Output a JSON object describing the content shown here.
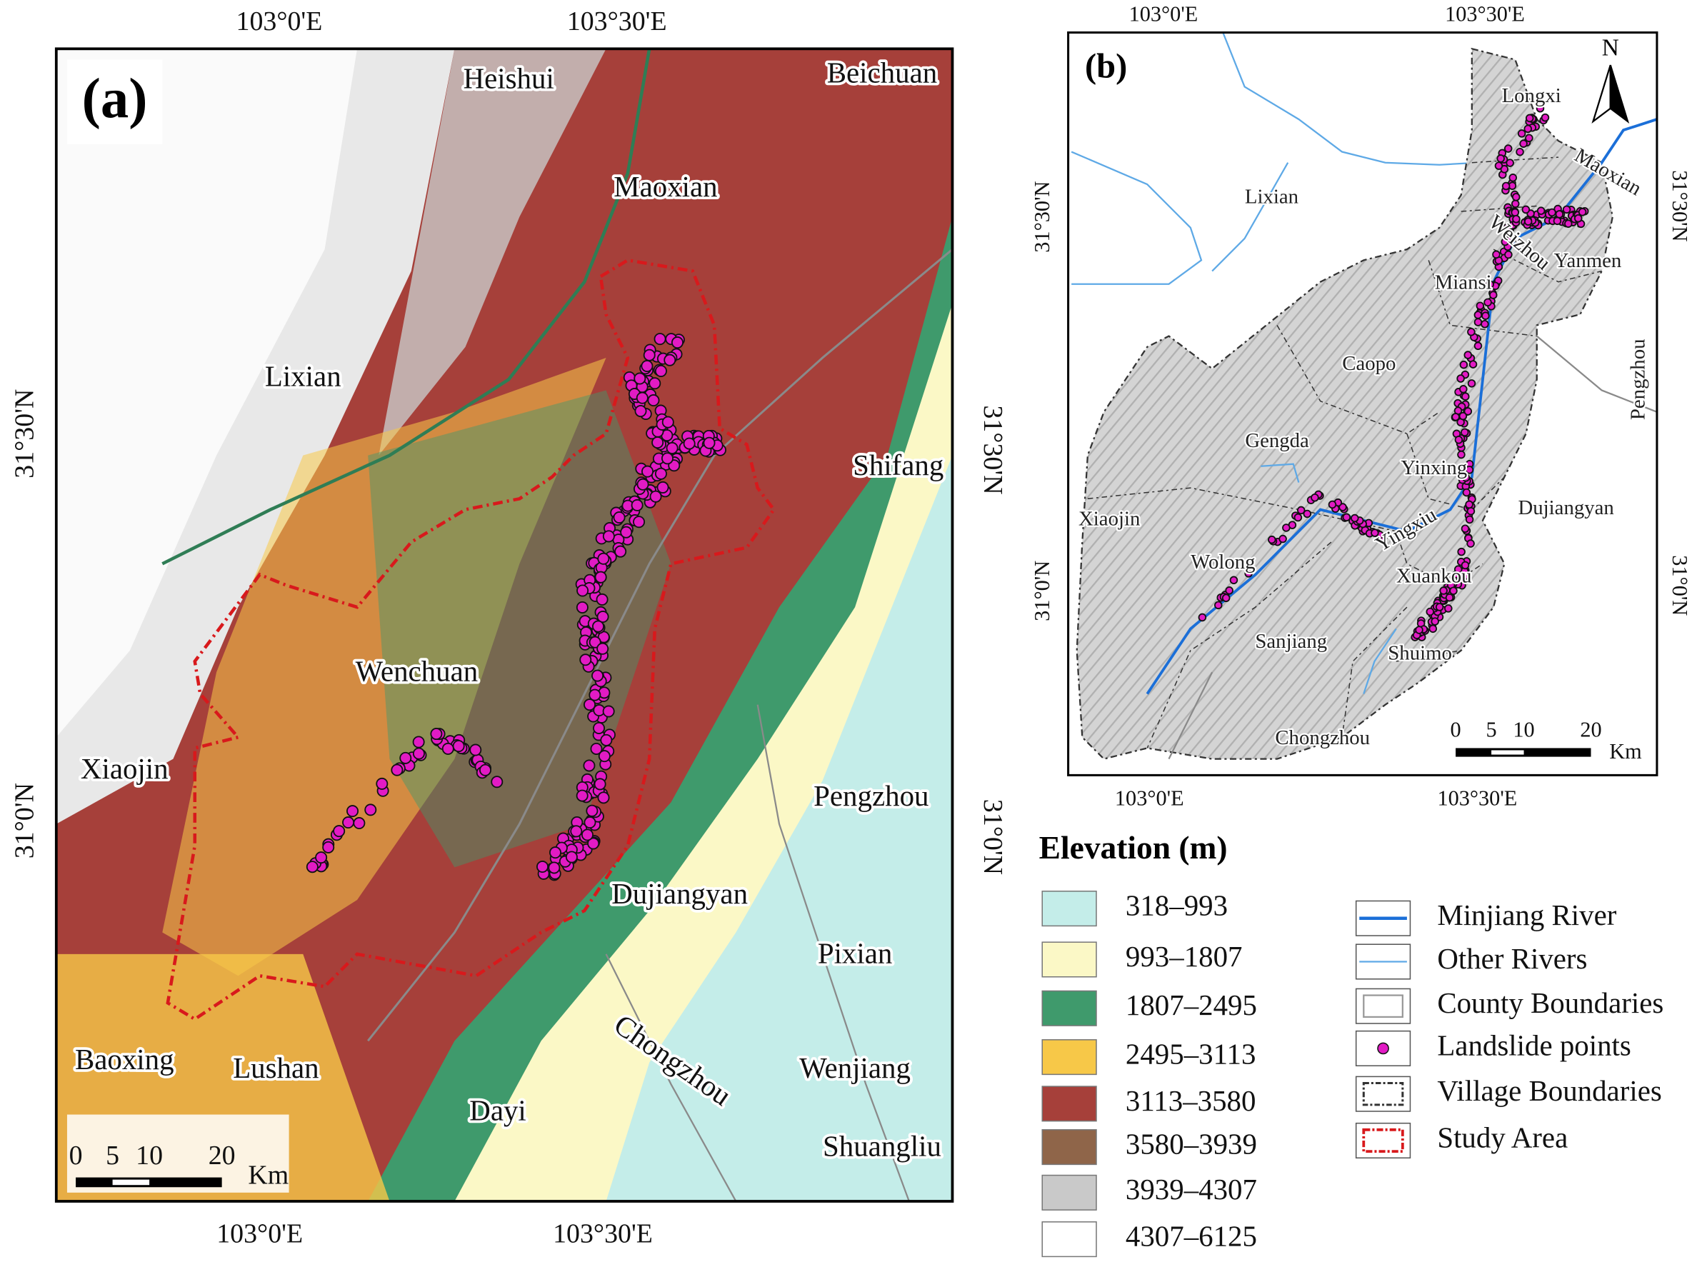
{
  "panel_a": {
    "label": "(a)",
    "top_ticks": [
      "103°0'E",
      "103°30'E"
    ],
    "bottom_ticks": [
      "103°0'E",
      "103°30'E"
    ],
    "left_ticks": [
      "31°30'N",
      "31°0'N"
    ],
    "right_ticks": [
      "31°30'N",
      "31°0'N"
    ],
    "places": [
      "Heishui",
      "Beichuan",
      "Maoxian",
      "Lixian",
      "Shifang",
      "Wenchuan",
      "Xiaojin",
      "Pengzhou",
      "Dujiangyan",
      "Pixian",
      "Chongzhou",
      "Wenjiang",
      "Baoxing",
      "Lushan",
      "Dayi",
      "Shuangliu"
    ],
    "scalebar": {
      "ticks": [
        "0",
        "5",
        "10",
        "20"
      ],
      "unit": "Km"
    }
  },
  "panel_b": {
    "label": "(b)",
    "north": "N",
    "top_ticks": [
      "103°0'E",
      "103°30'E"
    ],
    "bottom_ticks": [
      "103°0'E",
      "103°30'E"
    ],
    "left_ticks": [
      "31°30'N",
      "31°0'N"
    ],
    "right_ticks": [
      "31°30'N",
      "31°0'N"
    ],
    "places": [
      "Longxi",
      "Maoxian",
      "Lixian",
      "Weizhou",
      "Yanmen",
      "Miansi",
      "Caopo",
      "Pengzhou",
      "Gengda",
      "Yinxing",
      "Dujiangyan",
      "Xiaojin",
      "Yingxiu",
      "Wolong",
      "Xuankou",
      "Sanjiang",
      "Shuimo",
      "Chongzhou"
    ],
    "scalebar": {
      "ticks": [
        "0",
        "5",
        "10",
        "20"
      ],
      "unit": "Km"
    }
  },
  "legend": {
    "elevation_title": "Elevation (m)",
    "elevation_classes": [
      {
        "label": "318–993",
        "color": "#c4ede9"
      },
      {
        "label": "993–1807",
        "color": "#fbf8c6"
      },
      {
        "label": "1807–2495",
        "color": "#3f9a6c"
      },
      {
        "label": "2495–3113",
        "color": "#f7c848"
      },
      {
        "label": "3113–3580",
        "color": "#a6403a"
      },
      {
        "label": "3580–3939",
        "color": "#8f6549"
      },
      {
        "label": "3939–4307",
        "color": "#c9c9c9"
      },
      {
        "label": "4307–6125",
        "color": "#ffffff"
      }
    ],
    "features": [
      "Minjiang River",
      "Other Rivers",
      "County Boundaries",
      "Landslide points",
      "Village Boundaries",
      "Study Area"
    ]
  }
}
